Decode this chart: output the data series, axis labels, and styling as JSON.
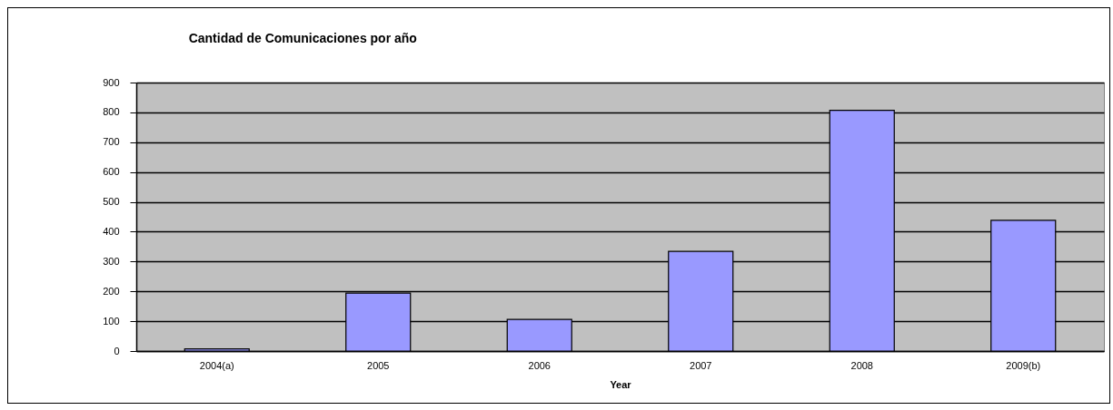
{
  "chart_data": {
    "type": "bar",
    "title": "Cantidad de Comunicaciones por año",
    "xlabel": "Year",
    "categories": [
      "2004(a)",
      "2005",
      "2006",
      "2007",
      "2008",
      "2009(b)"
    ],
    "values": [
      7,
      194,
      106,
      334,
      807,
      438
    ],
    "color": "#9999ff",
    "ylim": [
      0,
      900
    ],
    "yticks": [
      0,
      100,
      200,
      300,
      400,
      500,
      600,
      700,
      800,
      900
    ],
    "grid": "y"
  }
}
